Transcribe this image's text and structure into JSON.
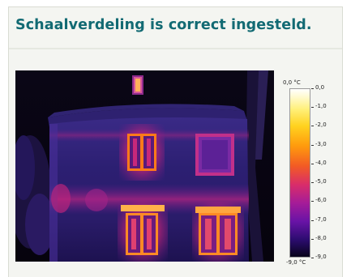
{
  "header": {
    "title": "Schaalverdeling is correct ingesteld."
  },
  "thermal_image": {
    "description_icon": "thermal-house-image"
  },
  "scale": {
    "top_label": "0,0 °C",
    "bottom_label": "-9,0 °C",
    "ticks": [
      "0,0",
      "-1,0",
      "-2,0",
      "-3,0",
      "-4,0",
      "-5,0",
      "-6,0",
      "-7,0",
      "-8,0",
      "-9,0"
    ],
    "min": -9.0,
    "max": 0.0,
    "colors": {
      "hot": "#ffffff",
      "warm": "#ffd21f",
      "mid": "#d92d6a",
      "cool": "#6813a6",
      "cold": "#08041a"
    }
  },
  "theme": {
    "title_color": "#126a73",
    "card_background": "#f4f5f1"
  }
}
